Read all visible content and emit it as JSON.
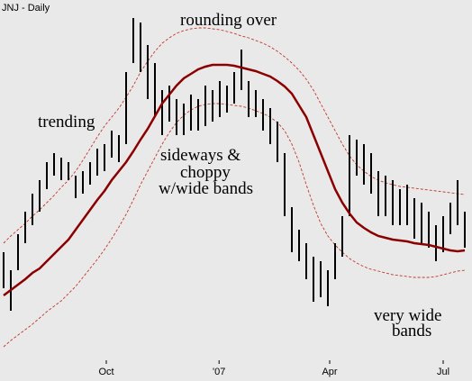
{
  "chart_data": {
    "type": "hilo",
    "title": "JNJ - Daily",
    "x": [
      0,
      1,
      2,
      3,
      4,
      5,
      6,
      7,
      8,
      9,
      10,
      11,
      12,
      13,
      14,
      15,
      16,
      17,
      18,
      19,
      20,
      21,
      22,
      23,
      24,
      25,
      26,
      27,
      28,
      29,
      30,
      31,
      32,
      33,
      34,
      35,
      36,
      37,
      38,
      39,
      40,
      41,
      42,
      43,
      44,
      45,
      46,
      47,
      48,
      49,
      50,
      51,
      52,
      53,
      54,
      55,
      56,
      57,
      58,
      59,
      60,
      61,
      62,
      63,
      64
    ],
    "high": [
      120,
      100,
      140,
      165,
      185,
      200,
      220,
      230,
      225,
      220,
      205,
      210,
      220,
      235,
      240,
      255,
      250,
      320,
      380,
      375,
      350,
      330,
      300,
      305,
      290,
      285,
      295,
      290,
      305,
      300,
      310,
      305,
      320,
      345,
      310,
      300,
      290,
      280,
      265,
      230,
      170,
      145,
      130,
      115,
      110,
      100,
      130,
      160,
      250,
      245,
      240,
      230,
      210,
      205,
      200,
      190,
      195,
      180,
      175,
      165,
      150,
      160,
      175,
      200,
      165
    ],
    "low": [
      80,
      55,
      100,
      130,
      150,
      165,
      190,
      205,
      200,
      200,
      180,
      185,
      195,
      205,
      210,
      225,
      220,
      240,
      330,
      320,
      290,
      270,
      250,
      265,
      250,
      250,
      255,
      255,
      260,
      265,
      270,
      275,
      285,
      300,
      270,
      270,
      255,
      240,
      220,
      160,
      120,
      110,
      90,
      65,
      70,
      60,
      90,
      115,
      160,
      205,
      195,
      185,
      160,
      160,
      150,
      150,
      150,
      135,
      130,
      125,
      110,
      120,
      140,
      150,
      125
    ],
    "color": "#000000",
    "moving_average": {
      "color": "#8b0000",
      "values": [
        72,
        78,
        84,
        90,
        97,
        102,
        110,
        118,
        126,
        134,
        145,
        156,
        167,
        178,
        188,
        200,
        210,
        220,
        232,
        245,
        257,
        271,
        285,
        295,
        305,
        313,
        318,
        323,
        326,
        328,
        328,
        328,
        327,
        325,
        323,
        321,
        318,
        315,
        310,
        304,
        296,
        283,
        270,
        250,
        230,
        210,
        190,
        175,
        163,
        153,
        147,
        142,
        138,
        136,
        134,
        133,
        132,
        130,
        129,
        128,
        126,
        124,
        122,
        121,
        122
      ]
    },
    "upper_band": {
      "color": "#c0392b",
      "dashed": true,
      "values": [
        130,
        138,
        145,
        152,
        160,
        167,
        175,
        183,
        192,
        200,
        210,
        222,
        235,
        248,
        260,
        270,
        280,
        292,
        305,
        320,
        332,
        343,
        352,
        358,
        363,
        366,
        368,
        369,
        369,
        368,
        367,
        365,
        363,
        360,
        358,
        355,
        352,
        348,
        343,
        337,
        330,
        322,
        312,
        300,
        285,
        270,
        255,
        240,
        227,
        217,
        210,
        204,
        200,
        197,
        195,
        193,
        192,
        191,
        190,
        189,
        188,
        187,
        186,
        185,
        184
      ]
    },
    "lower_band": {
      "color": "#c0392b",
      "dashed": true,
      "values": [
        15,
        22,
        28,
        34,
        40,
        47,
        54,
        60,
        66,
        74,
        82,
        92,
        102,
        112,
        123,
        135,
        148,
        162,
        178,
        195,
        210,
        225,
        240,
        253,
        264,
        272,
        278,
        282,
        284,
        285,
        285,
        284,
        283,
        282,
        280,
        277,
        274,
        270,
        264,
        255,
        240,
        220,
        195,
        172,
        152,
        138,
        128,
        120,
        113,
        108,
        104,
        101,
        99,
        97,
        95,
        94,
        93,
        92,
        92,
        92,
        93,
        95,
        97,
        99,
        100
      ]
    },
    "xlim": [
      0,
      64
    ],
    "ylim": [
      0,
      400
    ],
    "xticks": [
      {
        "value": 14.25,
        "label": "Oct"
      },
      {
        "value": 29.9,
        "label": "'07"
      },
      {
        "value": 45.25,
        "label": "Apr"
      },
      {
        "value": 61,
        "label": "Jul"
      }
    ],
    "annotations": [
      "rounding over",
      "trending",
      "sideways &",
      "choppy",
      "w/wide bands",
      "very wide",
      "bands"
    ]
  }
}
